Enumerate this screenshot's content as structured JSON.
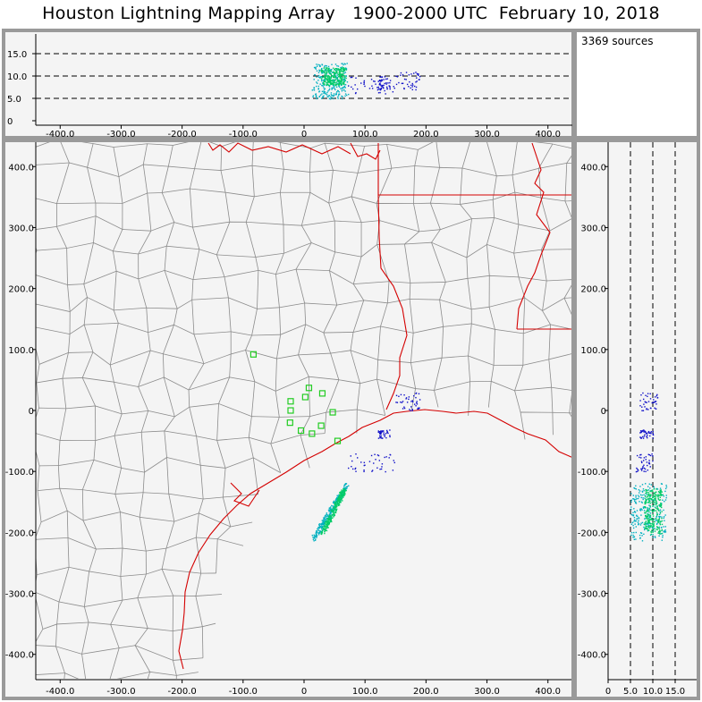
{
  "title": "Houston Lightning Mapping Array   1900-2000 UTC  February 10, 2018",
  "sources_count_label": "3369 sources",
  "x_ticks": [
    "-400.0",
    "-300.0",
    "-200.0",
    "-100.0",
    "0",
    "100.0",
    "200.0",
    "300.0",
    "400.0"
  ],
  "y_ticks": [
    "400.0",
    "300.0",
    "200.0",
    "100.0",
    "0",
    "-100.0",
    "-200.0",
    "-300.0",
    "-400.0"
  ],
  "alt_ticks": [
    "0",
    "5.0",
    "10.0",
    "15.0"
  ],
  "alt_ticks_side": [
    "0",
    "5.0",
    "10.0",
    "15.0"
  ],
  "colors": {
    "panel_bg": "#f4f4f4",
    "border": "#9a9a9a",
    "county_line": "#8c8c8c",
    "state_line": "#d40000",
    "station": "#22cc22",
    "sources_early": "#1010c8",
    "sources_mid": "#00b0c0",
    "sources_late": "#00cc66"
  },
  "map_data": {
    "x_range_km": [
      -440,
      440
    ],
    "y_range_km": [
      -440,
      440
    ],
    "alt_range_km": [
      0,
      18
    ],
    "dashed_altitudes_km": [
      5,
      10,
      15
    ],
    "stations_km": [
      [
        -83,
        92
      ],
      [
        -22,
        15
      ],
      [
        -23,
        -20
      ],
      [
        -22,
        0
      ],
      [
        -5,
        -33
      ],
      [
        2,
        22
      ],
      [
        8,
        37
      ],
      [
        30,
        28
      ],
      [
        47,
        -3
      ],
      [
        13,
        -38
      ],
      [
        28,
        -25
      ],
      [
        55,
        -50
      ]
    ],
    "storm_clusters": [
      {
        "name": "line-south",
        "x_km": [
          15,
          70
        ],
        "y_km": [
          -210,
          -120
        ],
        "alt_km": [
          5,
          13
        ],
        "color": "sources_mid"
      },
      {
        "name": "core",
        "x_km": [
          30,
          65
        ],
        "y_km": [
          -200,
          -130
        ],
        "alt_km": [
          8,
          12
        ],
        "color": "sources_late"
      },
      {
        "name": "north-cells",
        "x_km": [
          150,
          190
        ],
        "y_km": [
          0,
          30
        ],
        "alt_km": [
          7,
          11
        ],
        "color": "sources_early"
      },
      {
        "name": "mid-cells",
        "x_km": [
          120,
          140
        ],
        "y_km": [
          -45,
          -30
        ],
        "alt_km": [
          7,
          10
        ],
        "color": "sources_early"
      },
      {
        "name": "offshore",
        "x_km": [
          70,
          150
        ],
        "y_km": [
          -100,
          -70
        ],
        "alt_km": [
          6,
          10
        ],
        "color": "sources_early"
      }
    ]
  }
}
